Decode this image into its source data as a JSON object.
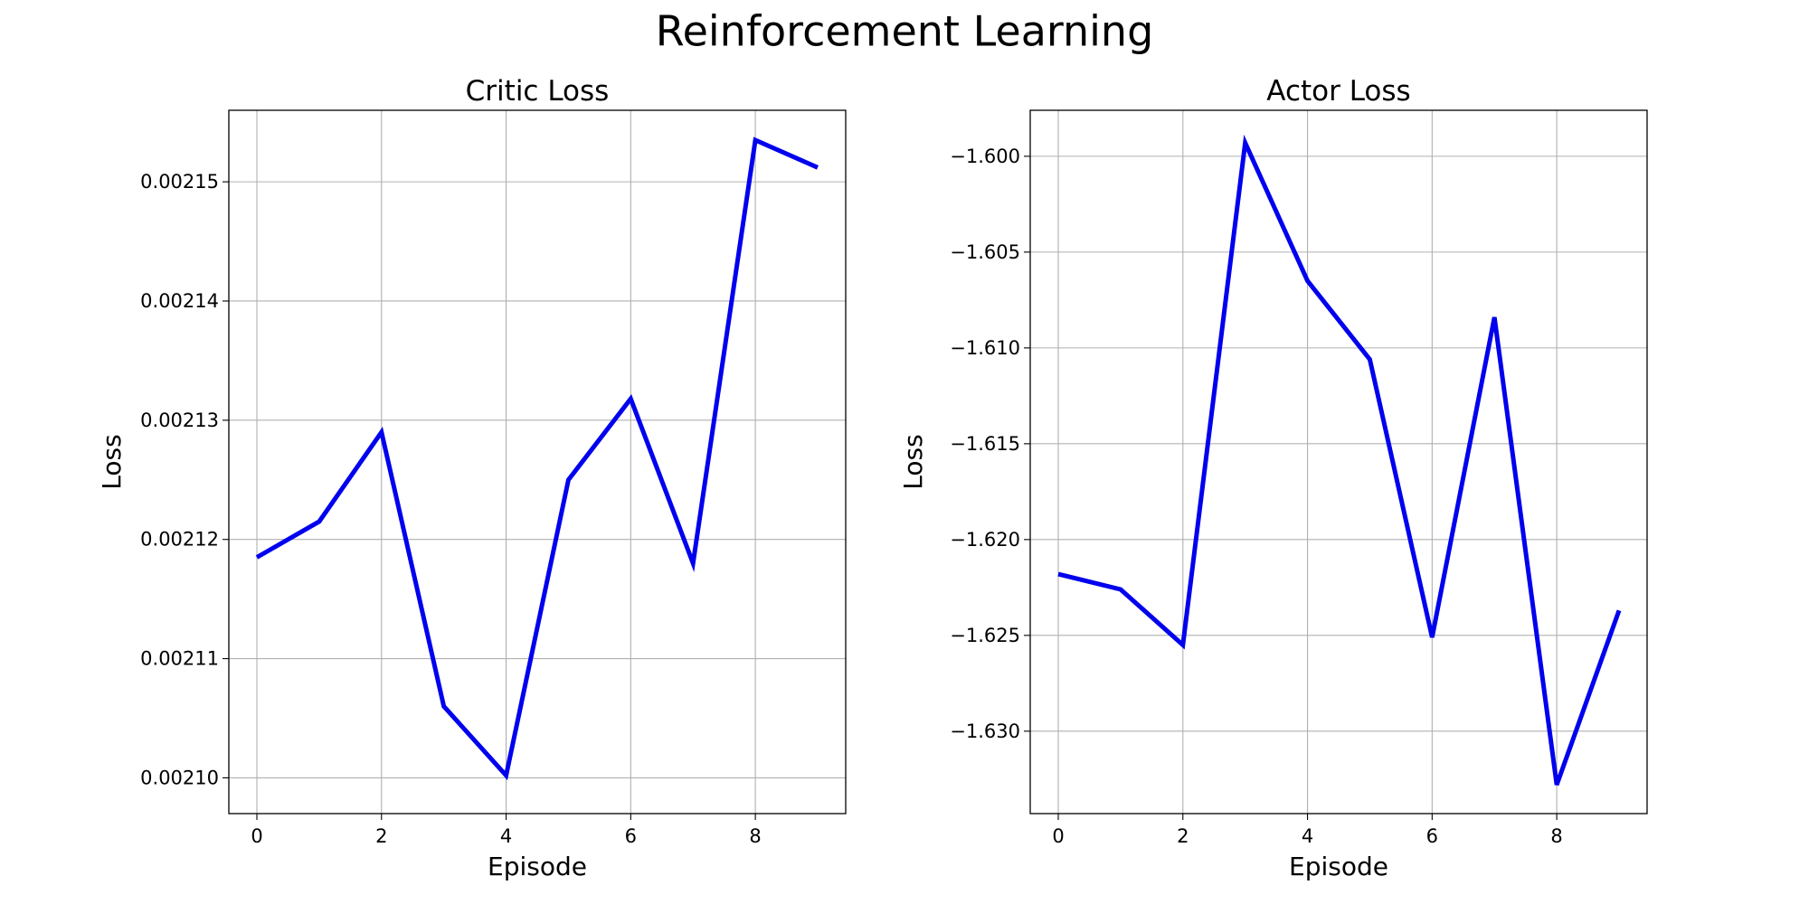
{
  "figure": {
    "title": "Reinforcement Learning"
  },
  "chart_data": [
    {
      "type": "line",
      "title": "Critic Loss",
      "xlabel": "Episode",
      "ylabel": "Loss",
      "x": [
        0,
        1,
        2,
        3,
        4,
        5,
        6,
        7,
        8,
        9
      ],
      "xticks": [
        0,
        2,
        4,
        6,
        8
      ],
      "xtick_labels": [
        "0",
        "2",
        "4",
        "6",
        "8"
      ],
      "xlim": [
        -0.45,
        9.45
      ],
      "yticks": [
        0.0021,
        0.00211,
        0.00212,
        0.00213,
        0.00214,
        0.00215
      ],
      "ytick_labels": [
        "0.00210",
        "0.00211",
        "0.00212",
        "0.00213",
        "0.00214",
        "0.00215"
      ],
      "ylim": [
        0.002097,
        0.002156
      ],
      "grid": true,
      "series": [
        {
          "values": [
            0.0021185,
            0.0021215,
            0.002129,
            0.002106,
            0.0021002,
            0.002125,
            0.0021318,
            0.002118,
            0.0021535,
            0.0021512
          ],
          "color": "#0000ee"
        }
      ]
    },
    {
      "type": "line",
      "title": "Actor Loss",
      "xlabel": "Episode",
      "ylabel": "Loss",
      "x": [
        0,
        1,
        2,
        3,
        4,
        5,
        6,
        7,
        8,
        9
      ],
      "xticks": [
        0,
        2,
        4,
        6,
        8
      ],
      "xtick_labels": [
        "0",
        "2",
        "4",
        "6",
        "8"
      ],
      "xlim": [
        -0.45,
        9.45
      ],
      "yticks": [
        -1.6,
        -1.605,
        -1.61,
        -1.615,
        -1.62,
        -1.625,
        -1.63
      ],
      "ytick_labels": [
        "−1.600",
        "−1.605",
        "−1.610",
        "−1.615",
        "−1.620",
        "−1.625",
        "−1.630"
      ],
      "ylim": [
        -1.6343,
        -1.5976
      ],
      "grid": true,
      "series": [
        {
          "values": [
            -1.6218,
            -1.6226,
            -1.6255,
            -1.5993,
            -1.6065,
            -1.6106,
            -1.6251,
            -1.6084,
            -1.6328,
            -1.6237
          ],
          "color": "#0000ee"
        }
      ]
    }
  ]
}
